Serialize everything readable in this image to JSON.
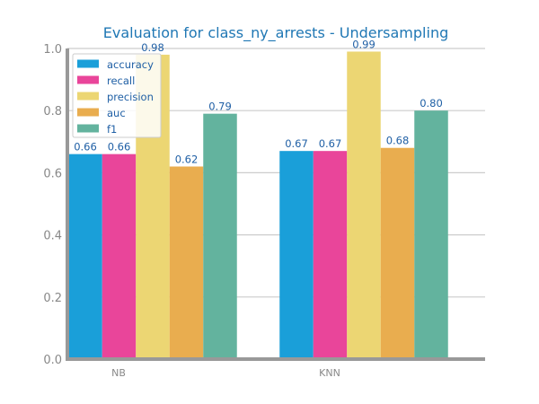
{
  "chart_data": {
    "type": "bar",
    "title": "Evaluation for class_ny_arrests - Undersampling",
    "xlabel": "",
    "ylabel": "",
    "categories": [
      "NB",
      "KNN"
    ],
    "series": [
      {
        "name": "accuracy",
        "color": "#1a9fd9",
        "values": [
          0.66,
          0.67
        ],
        "labels": [
          "0.66",
          "0.67"
        ]
      },
      {
        "name": "recall",
        "color": "#e9459a",
        "values": [
          0.66,
          0.67
        ],
        "labels": [
          "0.66",
          "0.67"
        ]
      },
      {
        "name": "precision",
        "color": "#ecd673",
        "values": [
          0.98,
          0.99
        ],
        "labels": [
          "0.98",
          "0.99"
        ]
      },
      {
        "name": "auc",
        "color": "#e9ad4f",
        "values": [
          0.62,
          0.68
        ],
        "labels": [
          "0.62",
          "0.68"
        ]
      },
      {
        "name": "f1",
        "color": "#63b39e",
        "values": [
          0.79,
          0.8
        ],
        "labels": [
          "0.79",
          "0.80"
        ]
      }
    ],
    "ylim": [
      0,
      1.0
    ],
    "yticks": [
      "0.0",
      "0.2",
      "0.4",
      "0.6",
      "0.8",
      "1.0"
    ],
    "ytick_values": [
      0,
      0.2,
      0.4,
      0.6,
      0.8,
      1.0
    ],
    "grid": true,
    "legend_position": "top-left"
  }
}
